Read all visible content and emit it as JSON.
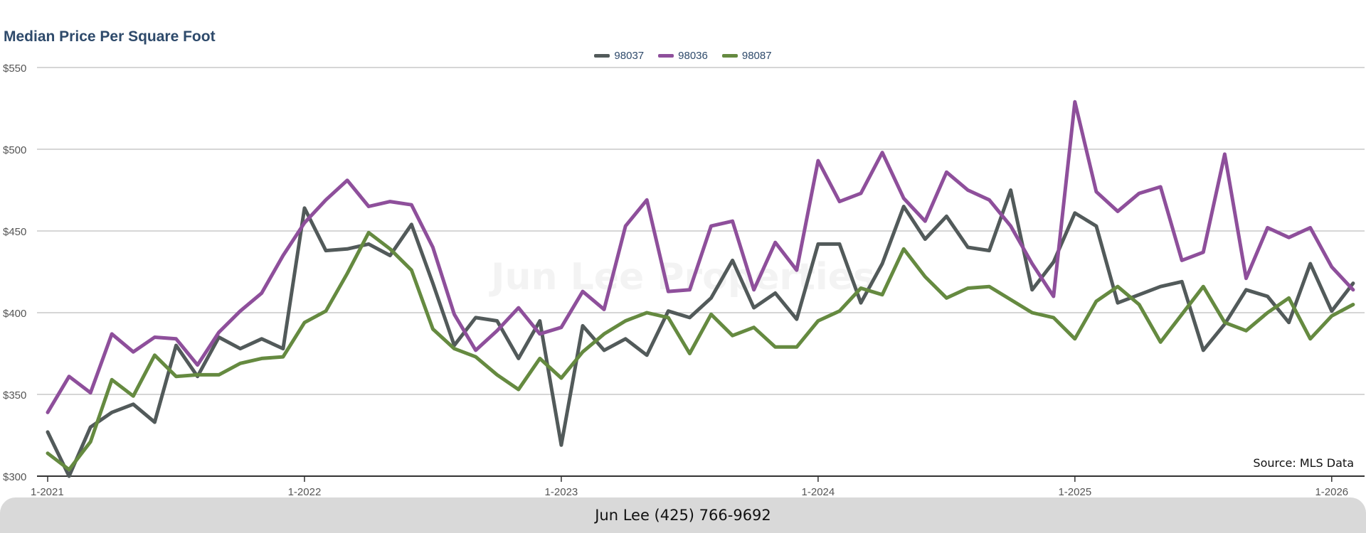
{
  "chart_data": {
    "type": "line",
    "title": "Median Price Per Square Foot",
    "xlabel": "",
    "ylabel": "",
    "ylim": [
      300,
      550
    ],
    "y_ticks": [
      300,
      350,
      400,
      450,
      500,
      550
    ],
    "y_tick_labels": [
      "$300",
      "$350",
      "$400",
      "$450",
      "$500",
      "$550"
    ],
    "x_tick_labels": [
      "1-2021",
      "1-2022",
      "1-2023",
      "1-2024",
      "1-2025",
      "1-2026"
    ],
    "x_tick_dates": [
      "2021-01",
      "2022-01",
      "2023-01",
      "2024-01",
      "2025-01",
      "2026-01"
    ],
    "x": [
      "2021-01",
      "2021-02",
      "2021-03",
      "2021-04",
      "2021-05",
      "2021-06",
      "2021-07",
      "2021-08",
      "2021-09",
      "2021-10",
      "2021-11",
      "2021-12",
      "2022-01",
      "2022-02",
      "2022-03",
      "2022-04",
      "2022-05",
      "2022-06",
      "2022-07",
      "2022-08",
      "2022-09",
      "2022-10",
      "2022-11",
      "2022-12",
      "2023-01",
      "2023-02",
      "2023-03",
      "2023-04",
      "2023-05",
      "2023-06",
      "2023-07",
      "2023-08",
      "2023-09",
      "2023-10",
      "2023-11",
      "2023-12",
      "2024-01",
      "2024-02",
      "2024-03",
      "2024-04",
      "2024-05",
      "2024-06",
      "2024-07",
      "2024-08",
      "2024-09",
      "2024-10",
      "2024-11",
      "2024-12",
      "2025-01",
      "2025-02",
      "2025-03",
      "2025-04",
      "2025-05",
      "2025-06",
      "2025-07",
      "2025-08",
      "2025-09",
      "2025-10",
      "2025-11",
      "2025-12",
      "2026-01",
      "2026-02"
    ],
    "grid": true,
    "legend_position": "top-center",
    "series": [
      {
        "name": "98037",
        "color": "#525a5a",
        "values": [
          327,
          300,
          330,
          339,
          344,
          333,
          380,
          361,
          385,
          378,
          384,
          378,
          464,
          438,
          439,
          442,
          435,
          454,
          418,
          380,
          397,
          395,
          372,
          395,
          319,
          392,
          377,
          384,
          374,
          401,
          397,
          409,
          432,
          403,
          412,
          396,
          442,
          442,
          406,
          430,
          465,
          445,
          459,
          440,
          438,
          475,
          414,
          431,
          461,
          453,
          406,
          411,
          416,
          419,
          377,
          393,
          414,
          410,
          394,
          430,
          401,
          418
        ]
      },
      {
        "name": "98036",
        "color": "#8e4f9b",
        "values": [
          339,
          361,
          351,
          387,
          376,
          385,
          384,
          368,
          388,
          401,
          412,
          435,
          455,
          469,
          481,
          465,
          468,
          466,
          440,
          399,
          377,
          389,
          403,
          387,
          391,
          413,
          402,
          453,
          469,
          413,
          414,
          453,
          456,
          414,
          443,
          426,
          493,
          468,
          473,
          498,
          470,
          456,
          486,
          475,
          469,
          453,
          430,
          410,
          529,
          474,
          462,
          473,
          477,
          432,
          437,
          497,
          421,
          452,
          446,
          452,
          428,
          414
        ]
      },
      {
        "name": "98087",
        "color": "#658a40",
        "values": [
          314,
          304,
          321,
          359,
          349,
          374,
          361,
          362,
          362,
          369,
          372,
          373,
          394,
          401,
          424,
          449,
          439,
          426,
          390,
          378,
          373,
          362,
          353,
          372,
          360,
          376,
          387,
          395,
          400,
          397,
          375,
          399,
          386,
          391,
          379,
          379,
          395,
          401,
          415,
          411,
          439,
          422,
          409,
          415,
          416,
          408,
          400,
          397,
          384,
          407,
          416,
          405,
          382,
          399,
          416,
          394,
          389,
          400,
          409,
          384,
          398,
          405
        ]
      }
    ]
  },
  "watermark": "Jun Lee Properties",
  "source_note": "Source: MLS Data",
  "footer_text": "Jun Lee (425) 766-9692"
}
